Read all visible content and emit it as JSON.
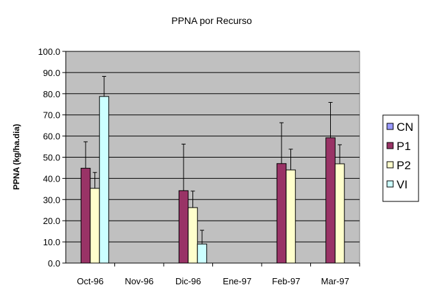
{
  "chart_data": {
    "type": "bar",
    "title": "PPNA por Recurso",
    "xlabel": "",
    "ylabel": "PPNA (kg/ha.dia)",
    "ylim": [
      0,
      100
    ],
    "ytick_step": 10,
    "ytick_labels": [
      "0.0",
      "10.0",
      "20.0",
      "30.0",
      "40.0",
      "50.0",
      "60.0",
      "70.0",
      "80.0",
      "90.0",
      "100.0"
    ],
    "grid": "horizontal",
    "plot_background": "#c0c0c0",
    "legend_position": "right",
    "categories": [
      "Oct-96",
      "Nov-96",
      "Dic-96",
      "Ene-97",
      "Feb-97",
      "Mar-97"
    ],
    "series": [
      {
        "name": "CN",
        "color": "#9999ff",
        "values": [
          null,
          null,
          null,
          null,
          null,
          null
        ],
        "errors": [
          null,
          null,
          null,
          null,
          null,
          null
        ]
      },
      {
        "name": "P1",
        "color": "#993366",
        "values": [
          44.8,
          null,
          34.2,
          null,
          47.0,
          59.2
        ],
        "errors": [
          12.5,
          null,
          22.0,
          null,
          19.3,
          16.7
        ]
      },
      {
        "name": "P2",
        "color": "#ffffcc",
        "values": [
          35.3,
          null,
          26.2,
          null,
          44.0,
          46.9
        ],
        "errors": [
          7.5,
          null,
          7.8,
          null,
          9.8,
          9.0
        ]
      },
      {
        "name": "VI",
        "color": "#ccffff",
        "values": [
          78.7,
          null,
          9.0,
          null,
          null,
          null
        ],
        "errors": [
          9.5,
          null,
          6.5,
          null,
          null,
          null
        ]
      }
    ]
  }
}
